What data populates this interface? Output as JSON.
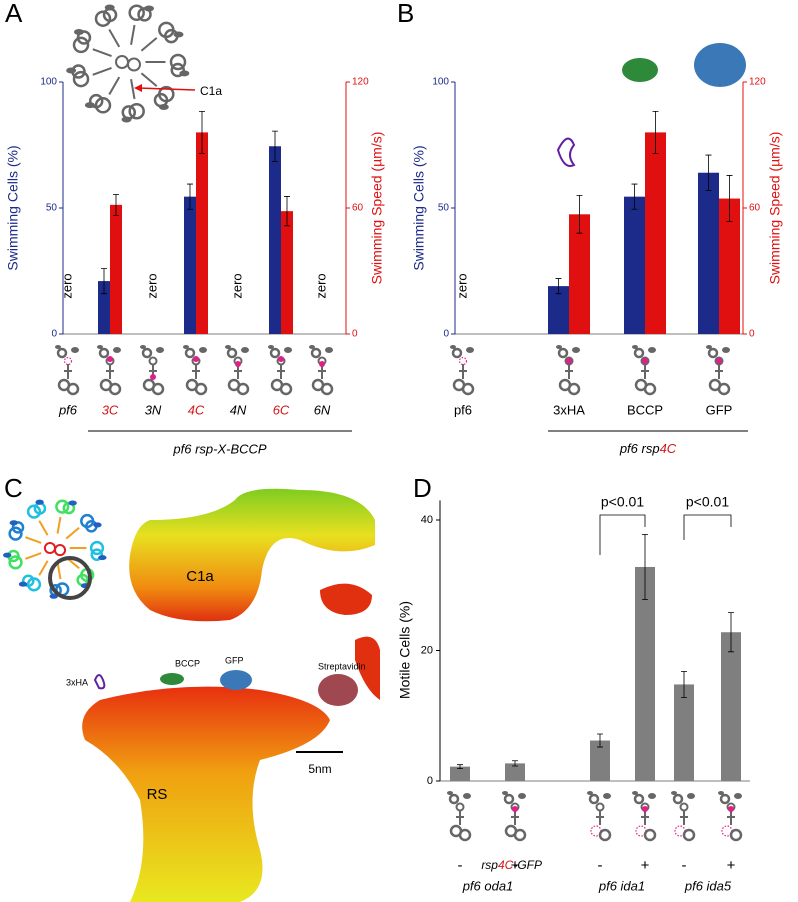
{
  "chart_data": [
    {
      "panel": "A",
      "type": "bar",
      "categories": [
        "pf6",
        "3C",
        "3N",
        "4C",
        "4N",
        "6C",
        "6N"
      ],
      "category_colors": [
        "#000000",
        "#d01818",
        "#000000",
        "#d01818",
        "#000000",
        "#d01818",
        "#000000"
      ],
      "group_label": "pf6 rsp-X-BCCP",
      "ylabel": "Swimming Cells (%)",
      "y2label": "Swimming Speed (µm/s)",
      "ylim": [
        0,
        100
      ],
      "yticks": [
        0,
        50,
        100
      ],
      "y2lim": [
        0,
        120
      ],
      "y2ticks": [
        0,
        60,
        120
      ],
      "series": [
        {
          "color": "#1c2a8a",
          "values": [
            0,
            21,
            0,
            54.5,
            0,
            74.5,
            0
          ],
          "errors": [
            null,
            5,
            null,
            5,
            null,
            6,
            null
          ],
          "value_labels": [
            "zero",
            null,
            "zero",
            null,
            "zero",
            null,
            "zero"
          ]
        },
        {
          "color": "#e01010",
          "axis": "y2",
          "values": [
            null,
            61.5,
            null,
            96,
            null,
            58.5,
            null
          ],
          "errors": [
            null,
            5,
            null,
            10,
            null,
            7,
            null
          ]
        }
      ],
      "annotation": "C1a"
    },
    {
      "panel": "B",
      "type": "bar",
      "categories": [
        "pf6",
        "3xHA",
        "BCCP",
        "GFP"
      ],
      "group_label": [
        "pf6 rsp",
        "4C"
      ],
      "ylabel": "Swimming Cells (%)",
      "y2label": "Swimming Speed (µm/s)",
      "ylim": [
        0,
        100
      ],
      "yticks": [
        0,
        50,
        100
      ],
      "y2lim": [
        0,
        120
      ],
      "y2ticks": [
        0,
        60,
        120
      ],
      "series": [
        {
          "color": "#1c2a8a",
          "values": [
            0,
            19,
            54.5,
            64
          ],
          "errors": [
            null,
            3,
            5,
            7
          ],
          "value_labels": [
            "zero",
            null,
            null,
            null
          ]
        },
        {
          "color": "#e01010",
          "axis": "y2",
          "values": [
            null,
            57,
            96,
            64.5
          ],
          "errors": [
            null,
            9,
            10,
            11
          ]
        }
      ]
    },
    {
      "panel": "D",
      "type": "bar",
      "categories": [
        "-",
        "+",
        "-",
        "+",
        "-",
        "+"
      ],
      "row_label": [
        "rsp",
        "4C",
        "-GFP"
      ],
      "groups": [
        "pf6 oda1",
        "pf6 ida1",
        "pf6 ida5"
      ],
      "ylabel": "Motile Cells (%)",
      "ylim": [
        0,
        43
      ],
      "yticks": [
        0,
        20,
        40
      ],
      "color": "#7f7f7f",
      "values": [
        2.2,
        2.7,
        6.2,
        32.8,
        14.8,
        22.8
      ],
      "errors": [
        0.3,
        0.4,
        1,
        5,
        2,
        3
      ],
      "annotations": [
        "p<0.01",
        "p<0.01"
      ]
    }
  ],
  "panel_c": {
    "panel": "C",
    "labels": {
      "c1a": "C1a",
      "ha": "3xHA",
      "bccp": "BCCP",
      "gfp": "GFP",
      "strep": "Streptavidin",
      "rs": "RS",
      "scale": "5nm"
    }
  }
}
